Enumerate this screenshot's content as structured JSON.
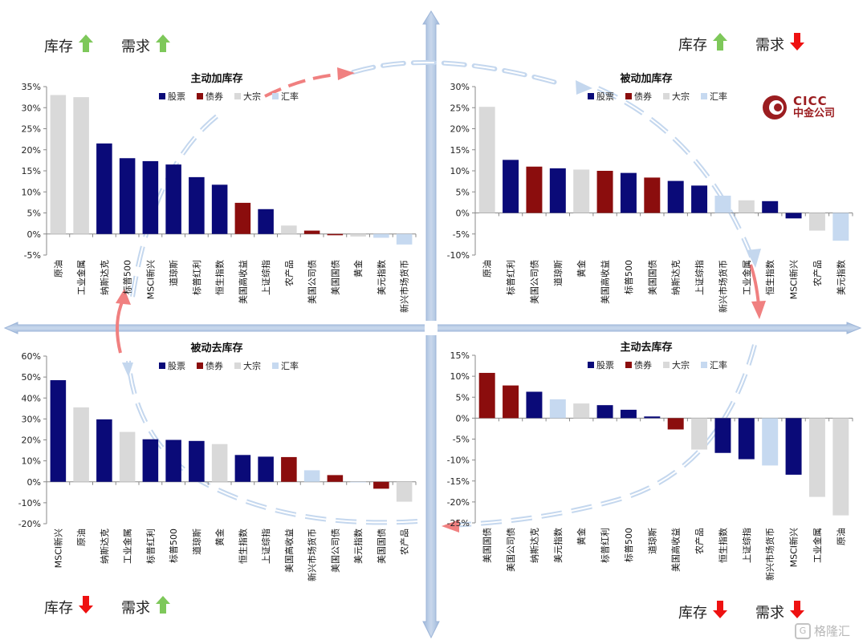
{
  "corners": {
    "tl": {
      "inventory_label": "库存",
      "inventory_trend": "up",
      "demand_label": "需求",
      "demand_trend": "up"
    },
    "tr": {
      "inventory_label": "库存",
      "inventory_trend": "up",
      "demand_label": "需求",
      "demand_trend": "down"
    },
    "bl": {
      "inventory_label": "库存",
      "inventory_trend": "down",
      "demand_label": "需求",
      "demand_trend": "up"
    },
    "br": {
      "inventory_label": "库存",
      "inventory_trend": "down",
      "demand_label": "需求",
      "demand_trend": "down"
    }
  },
  "brand": {
    "en": "CICC",
    "cn": "中金公司"
  },
  "watermark": {
    "text": "格隆汇",
    "mark": "G"
  },
  "colors": {
    "股票": "#0a0a78",
    "债券": "#8b0d0d",
    "大宗": "#d9d9d9",
    "汇率": "#c6d9f0",
    "axis_cross": "#b4c8e2",
    "up_arrow": "#7ec85a",
    "down_arrow": "#ee1111",
    "cycle_red": "#f08080",
    "cycle_blue": "#c4d7ee"
  },
  "legend": [
    "股票",
    "债券",
    "大宗",
    "汇率"
  ],
  "chart_data": [
    {
      "type": "bar",
      "title": "主动加库存",
      "ylim": [
        -5,
        35
      ],
      "yticks": [
        -5,
        0,
        5,
        10,
        15,
        20,
        25,
        30,
        35
      ],
      "categories": [
        "原油",
        "工业金属",
        "纳斯达克",
        "标普500",
        "MSCI新兴",
        "道琼斯",
        "标普红利",
        "恒生指数",
        "美国高收益",
        "上证综指",
        "农产品",
        "美国公司债",
        "美国国债",
        "黄金",
        "美元指数",
        "新兴市场货币"
      ],
      "values": [
        33.0,
        32.5,
        21.5,
        18.0,
        17.3,
        16.5,
        13.5,
        11.7,
        7.4,
        5.9,
        2.0,
        0.8,
        -0.3,
        -0.6,
        -0.9,
        -2.5
      ],
      "classes": [
        "大宗",
        "大宗",
        "股票",
        "股票",
        "股票",
        "股票",
        "股票",
        "股票",
        "债券",
        "股票",
        "大宗",
        "债券",
        "债券",
        "大宗",
        "汇率",
        "汇率"
      ]
    },
    {
      "type": "bar",
      "title": "被动加库存",
      "ylim": [
        -10,
        30
      ],
      "yticks": [
        -10,
        -5,
        0,
        5,
        10,
        15,
        20,
        25,
        30
      ],
      "categories": [
        "原油",
        "标普红利",
        "美国公司债",
        "道琼斯",
        "黄金",
        "美国高收益",
        "标普500",
        "美国国债",
        "纳斯达克",
        "上证综指",
        "新兴市场货币",
        "工业金属",
        "恒生指数",
        "MSCI新兴",
        "农产品",
        "美元指数"
      ],
      "values": [
        25.2,
        12.6,
        11.0,
        10.6,
        10.3,
        10.0,
        9.5,
        8.4,
        7.6,
        6.5,
        4.1,
        3.0,
        2.8,
        -1.3,
        -4.2,
        -6.6
      ],
      "classes": [
        "大宗",
        "股票",
        "债券",
        "股票",
        "大宗",
        "债券",
        "股票",
        "债券",
        "股票",
        "股票",
        "汇率",
        "大宗",
        "股票",
        "股票",
        "大宗",
        "汇率"
      ]
    },
    {
      "type": "bar",
      "title": "被动去库存",
      "ylim": [
        -20,
        60
      ],
      "yticks": [
        -20,
        -10,
        0,
        10,
        20,
        30,
        40,
        50,
        60
      ],
      "categories": [
        "MSCI新兴",
        "原油",
        "纳斯达克",
        "工业金属",
        "标普红利",
        "标普500",
        "道琼斯",
        "黄金",
        "恒生指数",
        "上证综指",
        "美国高收益",
        "新兴市场货币",
        "美国公司债",
        "美元指数",
        "美国国债",
        "农产品"
      ],
      "values": [
        48.5,
        35.5,
        29.8,
        23.8,
        20.3,
        20.0,
        19.5,
        18.0,
        12.8,
        12.0,
        11.8,
        5.5,
        3.2,
        -0.3,
        -3.3,
        -9.5
      ],
      "classes": [
        "股票",
        "大宗",
        "股票",
        "大宗",
        "股票",
        "股票",
        "股票",
        "大宗",
        "股票",
        "股票",
        "债券",
        "汇率",
        "债券",
        "汇率",
        "债券",
        "大宗"
      ]
    },
    {
      "type": "bar",
      "title": "主动去库存",
      "ylim": [
        -25,
        15
      ],
      "yticks": [
        -25,
        -20,
        -15,
        -10,
        -5,
        0,
        5,
        10,
        15
      ],
      "categories": [
        "美国国债",
        "美国公司债",
        "纳斯达克",
        "美元指数",
        "黄金",
        "标普红利",
        "标普500",
        "道琼斯",
        "美国高收益",
        "农产品",
        "恒生指数",
        "上证综指",
        "新兴市场货币",
        "MSCI新兴",
        "工业金属",
        "原油"
      ],
      "values": [
        10.8,
        7.8,
        6.3,
        4.5,
        3.5,
        3.1,
        2.0,
        0.4,
        -2.7,
        -7.5,
        -8.3,
        -9.8,
        -11.3,
        -13.5,
        -18.8,
        -23.2
      ],
      "classes": [
        "债券",
        "债券",
        "股票",
        "汇率",
        "大宗",
        "股票",
        "股票",
        "股票",
        "债券",
        "大宗",
        "股票",
        "股票",
        "汇率",
        "股票",
        "大宗",
        "大宗"
      ]
    }
  ]
}
